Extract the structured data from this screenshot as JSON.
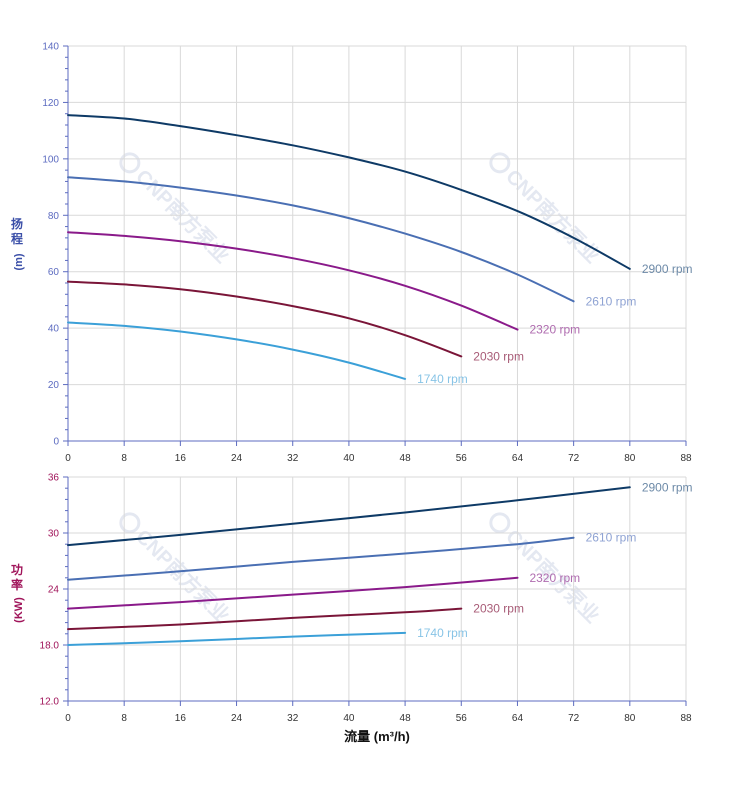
{
  "chart_data": [
    {
      "type": "line",
      "ylabel_chars": [
        "扬",
        "程"
      ],
      "ylabel_unit": "(m)",
      "xlim": [
        0,
        88
      ],
      "ylim": [
        0,
        140
      ],
      "x_ticks": [
        "0",
        "8",
        "16",
        "24",
        "32",
        "40",
        "48",
        "56",
        "64",
        "72",
        "80",
        "88"
      ],
      "y_ticks": [
        "0",
        "20",
        "40",
        "60",
        "80",
        "100",
        "120",
        "140"
      ],
      "grid": true,
      "series": [
        {
          "name": "2900 rpm",
          "color": "#0e3a66",
          "label_color": "#6d8aa8",
          "x": [
            0,
            8,
            16,
            24,
            32,
            40,
            48,
            56,
            64,
            72,
            80
          ],
          "y": [
            115.5,
            114.3,
            111.6,
            108.4,
            104.8,
            100.5,
            95.5,
            89.0,
            81.5,
            72.0,
            61.0
          ]
        },
        {
          "name": "2610 rpm",
          "color": "#4a6fb3",
          "label_color": "#8fa3d3",
          "x": [
            0,
            8,
            16,
            24,
            32,
            40,
            48,
            56,
            64,
            72
          ],
          "y": [
            93.5,
            92.0,
            89.8,
            87.0,
            83.5,
            79.0,
            73.5,
            67.0,
            59.0,
            49.5
          ]
        },
        {
          "name": "2320 rpm",
          "color": "#8a1a8a",
          "label_color": "#b06db0",
          "x": [
            0,
            8,
            16,
            24,
            32,
            40,
            48,
            56,
            64
          ],
          "y": [
            74.0,
            72.7,
            70.8,
            68.2,
            64.8,
            60.5,
            55.0,
            48.0,
            39.5
          ]
        },
        {
          "name": "2030 rpm",
          "color": "#7a1538",
          "label_color": "#a85c77",
          "x": [
            0,
            8,
            16,
            24,
            32,
            40,
            48,
            56
          ],
          "y": [
            56.5,
            55.5,
            53.8,
            51.2,
            47.8,
            43.5,
            37.5,
            30.0
          ]
        },
        {
          "name": "1740 rpm",
          "color": "#3ba0d8",
          "label_color": "#88c4e6",
          "x": [
            0,
            8,
            16,
            24,
            32,
            40,
            48
          ],
          "y": [
            42.0,
            40.8,
            38.8,
            36.0,
            32.4,
            27.8,
            22.0
          ]
        }
      ]
    },
    {
      "type": "line",
      "ylabel_chars": [
        "功",
        "率"
      ],
      "ylabel_unit": "(KW)",
      "xlabel": "流量 (m³/h)",
      "xlim": [
        0,
        88
      ],
      "ylim": [
        12,
        36
      ],
      "x_ticks": [
        "0",
        "8",
        "16",
        "24",
        "32",
        "40",
        "48",
        "56",
        "64",
        "72",
        "80",
        "88"
      ],
      "y_ticks": [
        "12.0",
        "18.0",
        "24",
        "30",
        "36"
      ],
      "y_tick_values": [
        12,
        18,
        24,
        30,
        36
      ],
      "grid": true,
      "series": [
        {
          "name": "2900 rpm",
          "color": "#0e3a66",
          "label_color": "#6d8aa8",
          "x": [
            0,
            16,
            32,
            48,
            64,
            80
          ],
          "y": [
            28.7,
            29.8,
            31.0,
            32.2,
            33.5,
            34.9
          ]
        },
        {
          "name": "2610 rpm",
          "color": "#4a6fb3",
          "label_color": "#8fa3d3",
          "x": [
            0,
            16,
            32,
            48,
            64,
            72
          ],
          "y": [
            25.0,
            25.9,
            26.9,
            27.8,
            28.8,
            29.5
          ]
        },
        {
          "name": "2320 rpm",
          "color": "#8a1a8a",
          "label_color": "#b06db0",
          "x": [
            0,
            16,
            32,
            48,
            64
          ],
          "y": [
            21.9,
            22.6,
            23.4,
            24.2,
            25.2
          ]
        },
        {
          "name": "2030 rpm",
          "color": "#7a1538",
          "label_color": "#a85c77",
          "x": [
            0,
            16,
            32,
            48,
            56
          ],
          "y": [
            19.7,
            20.2,
            20.9,
            21.5,
            21.9
          ]
        },
        {
          "name": "1740 rpm",
          "color": "#3ba0d8",
          "label_color": "#88c4e6",
          "x": [
            0,
            16,
            32,
            48
          ],
          "y": [
            18.0,
            18.4,
            18.9,
            19.3
          ]
        }
      ]
    }
  ],
  "watermark": {
    "text": "CNP南方泵业",
    "color": "#cfd6e6"
  },
  "colors": {
    "grid": "#d9d9d9",
    "axis": "#5c6bc0",
    "head_axis_title": "#3b4fa8",
    "power_axis_title": "#a0145a",
    "x_tick_text": "#333333",
    "head_tick_text": "#5c6bc0",
    "power_tick_text": "#a0145a"
  }
}
